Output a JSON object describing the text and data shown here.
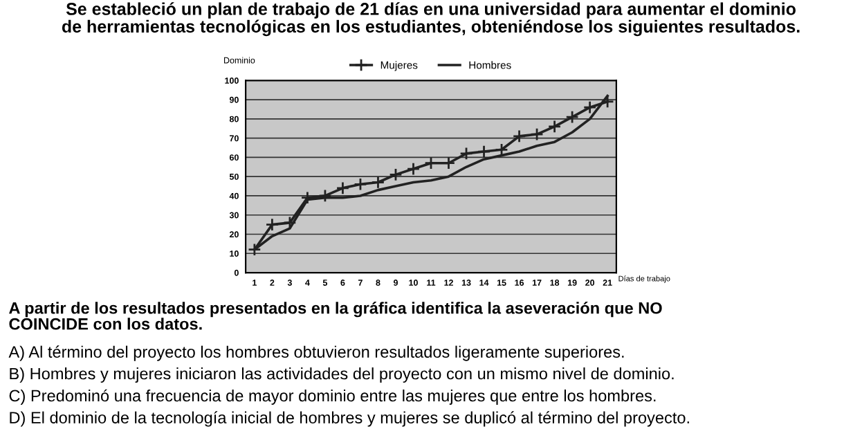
{
  "chart_data": {
    "type": "line",
    "title": "Se estableció un plan de trabajo de 21 días en una universidad para aumentar el dominio\nde herramientas tecnológicas en los estudiantes, obteniéndose los siguientes resultados.",
    "ylabel": "Dominio",
    "xlabel": "Días de trabajo",
    "categories": [
      "1",
      "2",
      "3",
      "4",
      "5",
      "6",
      "7",
      "8",
      "9",
      "10",
      "11",
      "12",
      "13",
      "14",
      "15",
      "16",
      "17",
      "18",
      "19",
      "20",
      "21"
    ],
    "series": [
      {
        "name": "Mujeres",
        "color": "#222222",
        "marker": "cross",
        "values": [
          12,
          25,
          26,
          39,
          40,
          44,
          46,
          47,
          51,
          54,
          57,
          57,
          62,
          63,
          64,
          71,
          72,
          76,
          81,
          86,
          89
        ]
      },
      {
        "name": "Hombres",
        "color": "#222222",
        "marker": "none",
        "values": [
          12,
          19,
          23,
          38,
          39,
          39,
          40,
          43,
          45,
          47,
          48,
          50,
          55,
          59,
          61,
          63,
          66,
          68,
          73,
          80,
          92
        ]
      }
    ],
    "ylim": [
      0,
      100
    ],
    "yticks": [
      0,
      10,
      20,
      30,
      40,
      50,
      60,
      70,
      80,
      90,
      100
    ],
    "grid": "y",
    "legend": "top",
    "line_style": "solid",
    "annotations": [
      "A partir de los resultados presentados en la gráfica identifica la aseveración que NO\nCOINCIDE con los datos.",
      "A) Al término del proyecto los hombres obtuvieron resultados ligeramente superiores.",
      "B) Hombres y mujeres iniciaron las actividades del proyecto con un mismo nivel de dominio.",
      "C) Predominó una frecuencia de mayor dominio entre las mujeres que entre los hombres.",
      "D) El dominio de la tecnología inicial de hombres y mujeres se duplicó al término del proyecto."
    ]
  }
}
